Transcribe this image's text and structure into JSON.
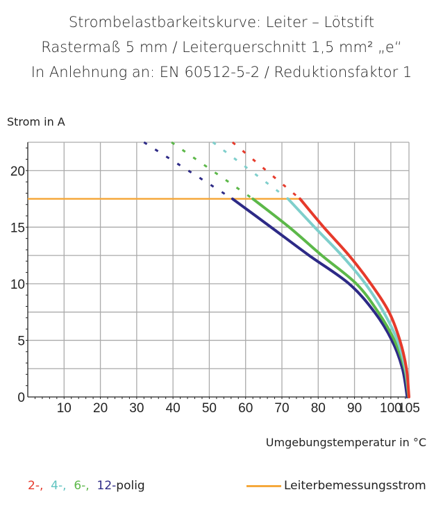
{
  "chart_data": {
    "type": "line",
    "title": [
      "Strombelastbarkeitskurve: Leiter – Lötstift",
      "Rastermaß 5 mm / Leiterquerschnitt 1,5 mm² „e“",
      "In Anlehnung an: EN 60512-5-2 / Reduktionsfaktor 1"
    ],
    "ylabel": "Strom in A",
    "xlabel": "Umgebungstemperatur in °C",
    "xlim": [
      0,
      105
    ],
    "ylim": [
      0,
      22.5
    ],
    "xticks": [
      "10",
      "20",
      "30",
      "40",
      "50",
      "60",
      "70",
      "80",
      "90",
      "100",
      "105"
    ],
    "xtick_values": [
      10,
      20,
      30,
      40,
      50,
      60,
      70,
      80,
      90,
      100,
      105
    ],
    "yticks": [
      "0",
      "5",
      "10",
      "15",
      "20"
    ],
    "ytick_values": [
      0,
      5,
      10,
      15,
      20
    ],
    "grid": true,
    "legend_placement": "bottom",
    "series": [
      {
        "name": "2-,",
        "color": "#e63a2b",
        "x": [
          75,
          81.5,
          88.5,
          94.5,
          99.5,
          102.5,
          104.3,
          105
        ],
        "y": [
          17.5,
          15,
          12.5,
          10,
          7.5,
          5,
          2.5,
          0
        ],
        "dashed_x": [
          56.4,
          75
        ],
        "dashed_y": [
          22.5,
          17.5
        ]
      },
      {
        "name": "4-,",
        "color": "#7fcfcc",
        "x": [
          71.7,
          79,
          86.5,
          93,
          98,
          101.8,
          104,
          105
        ],
        "y": [
          17.5,
          15,
          12.5,
          10,
          7.5,
          5,
          2.5,
          0
        ],
        "dashed_x": [
          51,
          71.7
        ],
        "dashed_y": [
          22.5,
          17.5
        ]
      },
      {
        "name": "6-,",
        "color": "#5cb849",
        "x": [
          62,
          72,
          81,
          90.5,
          96.5,
          101,
          103.8,
          104.9
        ],
        "y": [
          17.5,
          15,
          12.5,
          10,
          7.5,
          5,
          2.5,
          0
        ],
        "dashed_x": [
          39.6,
          62
        ],
        "dashed_y": [
          22.5,
          17.5
        ]
      },
      {
        "name": "12-",
        "color": "#2d2a86",
        "x": [
          56.4,
          67,
          77.5,
          88.5,
          95.5,
          100.3,
          103.2,
          104.5
        ],
        "y": [
          17.5,
          15,
          12.5,
          10,
          7.5,
          5,
          2.5,
          0
        ],
        "dashed_x": [
          32,
          56.4
        ],
        "dashed_y": [
          22.5,
          17.5
        ]
      }
    ],
    "legend_suffix": "polig",
    "rated_current": {
      "name": "Leiterbemessungsstrom",
      "color": "#f5a83c",
      "value": 17.5,
      "x_end": 75
    }
  }
}
